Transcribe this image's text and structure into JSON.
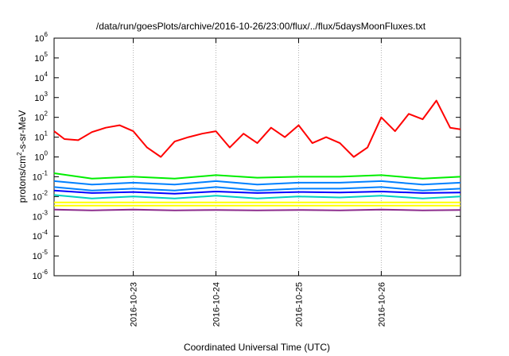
{
  "chart_data": {
    "type": "line",
    "title": "/data/run/goesPlots/archive/2016-10-26/23:00/flux/../flux/5daysMoonFluxes.txt",
    "xlabel": "Coordinated Universal Time (UTC)",
    "ylabel": "protons/cm2-s-sr-MeV",
    "yscale": "log",
    "ylim": [
      1e-06,
      1000000.0
    ],
    "xlim": [
      "2016-10-22T01:00",
      "2016-10-26T23:00"
    ],
    "grid": true,
    "legend": "none",
    "yticks": [
      {
        "value": 1e-06,
        "base": "10",
        "exp": "-6"
      },
      {
        "value": 1e-05,
        "base": "10",
        "exp": "-5"
      },
      {
        "value": 0.0001,
        "base": "10",
        "exp": "-4"
      },
      {
        "value": 0.001,
        "base": "10",
        "exp": "-3"
      },
      {
        "value": 0.01,
        "base": "10",
        "exp": "-2"
      },
      {
        "value": 0.1,
        "base": "10",
        "exp": "-1"
      },
      {
        "value": 1.0,
        "base": "10",
        "exp": "0"
      },
      {
        "value": 10.0,
        "base": "10",
        "exp": "1"
      },
      {
        "value": 100.0,
        "base": "10",
        "exp": "2"
      },
      {
        "value": 1000.0,
        "base": "10",
        "exp": "3"
      },
      {
        "value": 10000.0,
        "base": "10",
        "exp": "4"
      },
      {
        "value": 100000.0,
        "base": "10",
        "exp": "5"
      },
      {
        "value": 1000000.0,
        "base": "10",
        "exp": "6"
      }
    ],
    "xticks": [
      {
        "value": "2016-10-23T00:00",
        "label": "2016-10-23"
      },
      {
        "value": "2016-10-24T00:00",
        "label": "2016-10-24"
      },
      {
        "value": "2016-10-25T00:00",
        "label": "2016-10-25"
      },
      {
        "value": "2016-10-26T00:00",
        "label": "2016-10-26"
      }
    ],
    "series": [
      {
        "color": "#ff0000",
        "lines": [
          {
            "x": [
              "2016-10-22T01:00",
              "2016-10-22T04:00",
              "2016-10-22T08:00",
              "2016-10-22T12:00",
              "2016-10-22T16:00",
              "2016-10-22T20:00",
              "2016-10-23T00:00",
              "2016-10-23T04:00",
              "2016-10-23T08:00",
              "2016-10-23T12:00",
              "2016-10-23T16:00",
              "2016-10-23T20:00",
              "2016-10-24T00:00",
              "2016-10-24T04:00",
              "2016-10-24T08:00",
              "2016-10-24T12:00",
              "2016-10-24T16:00",
              "2016-10-24T20:00",
              "2016-10-25T00:00",
              "2016-10-25T04:00",
              "2016-10-25T08:00",
              "2016-10-25T12:00",
              "2016-10-25T16:00",
              "2016-10-25T20:00",
              "2016-10-26T00:00",
              "2016-10-26T04:00",
              "2016-10-26T08:00",
              "2016-10-26T12:00",
              "2016-10-26T16:00",
              "2016-10-26T20:00",
              "2016-10-26T23:00"
            ],
            "y": [
              20,
              8,
              7,
              18,
              30,
              40,
              20,
              3,
              1,
              6,
              10,
              15,
              20,
              3,
              15,
              5,
              30,
              10,
              40,
              5,
              10,
              5,
              1,
              3,
              100,
              20,
              150,
              80,
              700,
              30,
              25
            ]
          }
        ]
      },
      {
        "color": "#00ee00",
        "lines": [
          {
            "x": [
              "2016-10-22T01:00",
              "2016-10-22T12:00",
              "2016-10-23T00:00",
              "2016-10-23T12:00",
              "2016-10-24T00:00",
              "2016-10-24T12:00",
              "2016-10-25T00:00",
              "2016-10-25T12:00",
              "2016-10-26T00:00",
              "2016-10-26T12:00",
              "2016-10-26T23:00"
            ],
            "y": [
              0.15,
              0.08,
              0.1,
              0.08,
              0.12,
              0.09,
              0.1,
              0.1,
              0.12,
              0.08,
              0.1
            ]
          }
        ]
      },
      {
        "color": "#0080ff",
        "lines": [
          {
            "x": [
              "2016-10-22T01:00",
              "2016-10-22T12:00",
              "2016-10-23T00:00",
              "2016-10-23T12:00",
              "2016-10-24T00:00",
              "2016-10-24T12:00",
              "2016-10-25T00:00",
              "2016-10-25T12:00",
              "2016-10-26T00:00",
              "2016-10-26T12:00",
              "2016-10-26T23:00"
            ],
            "y": [
              0.06,
              0.04,
              0.05,
              0.04,
              0.06,
              0.04,
              0.05,
              0.05,
              0.06,
              0.04,
              0.05
            ]
          },
          {
            "x": [
              "2016-10-22T01:00",
              "2016-10-22T12:00",
              "2016-10-23T00:00",
              "2016-10-23T12:00",
              "2016-10-24T00:00",
              "2016-10-24T12:00",
              "2016-10-25T00:00",
              "2016-10-25T12:00",
              "2016-10-26T00:00",
              "2016-10-26T12:00",
              "2016-10-26T23:00"
            ],
            "y": [
              0.03,
              0.02,
              0.025,
              0.02,
              0.03,
              0.02,
              0.025,
              0.025,
              0.03,
              0.02,
              0.025
            ]
          }
        ]
      },
      {
        "color": "#00d0c0",
        "lines": [
          {
            "x": [
              "2016-10-22T01:00",
              "2016-10-22T12:00",
              "2016-10-23T00:00",
              "2016-10-23T12:00",
              "2016-10-24T00:00",
              "2016-10-24T12:00",
              "2016-10-25T00:00",
              "2016-10-25T12:00",
              "2016-10-26T00:00",
              "2016-10-26T12:00",
              "2016-10-26T23:00"
            ],
            "y": [
              0.012,
              0.008,
              0.01,
              0.008,
              0.011,
              0.008,
              0.01,
              0.009,
              0.011,
              0.008,
              0.01
            ]
          }
        ]
      },
      {
        "color": "#0000ff",
        "lines": [
          {
            "x": [
              "2016-10-22T01:00",
              "2016-10-22T12:00",
              "2016-10-23T00:00",
              "2016-10-23T12:00",
              "2016-10-24T00:00",
              "2016-10-24T12:00",
              "2016-10-25T00:00",
              "2016-10-25T12:00",
              "2016-10-26T00:00",
              "2016-10-26T12:00",
              "2016-10-26T23:00"
            ],
            "y": [
              0.02,
              0.015,
              0.017,
              0.014,
              0.018,
              0.015,
              0.017,
              0.016,
              0.018,
              0.015,
              0.016
            ]
          }
        ]
      },
      {
        "color": "#ffff00",
        "lines": [
          {
            "x": [
              "2016-10-22T01:00",
              "2016-10-26T23:00"
            ],
            "y": [
              0.005,
              0.005
            ]
          },
          {
            "x": [
              "2016-10-22T01:00",
              "2016-10-26T23:00"
            ],
            "y": [
              0.0035,
              0.0035
            ]
          }
        ]
      },
      {
        "color": "#8b2a8b",
        "lines": [
          {
            "x": [
              "2016-10-22T01:00",
              "2016-10-22T12:00",
              "2016-10-23T00:00",
              "2016-10-23T12:00",
              "2016-10-24T00:00",
              "2016-10-24T12:00",
              "2016-10-25T00:00",
              "2016-10-25T12:00",
              "2016-10-26T00:00",
              "2016-10-26T12:00",
              "2016-10-26T23:00"
            ],
            "y": [
              0.0022,
              0.002,
              0.0022,
              0.002,
              0.0021,
              0.002,
              0.0021,
              0.002,
              0.0022,
              0.002,
              0.0021
            ]
          }
        ]
      }
    ]
  }
}
